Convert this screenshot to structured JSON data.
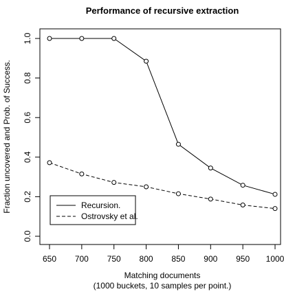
{
  "chart_data": {
    "type": "line",
    "title": "Performance of recursive extraction",
    "xlabel": "Matching documents",
    "xlabel_sub": "(1000 buckets, 10 samples per point.)",
    "ylabel": "Fraction uncovered and Prob. of Success.",
    "x": [
      650,
      700,
      750,
      800,
      850,
      900,
      950,
      1000
    ],
    "xlim": [
      650,
      1000
    ],
    "ylim": [
      0,
      1
    ],
    "x_ticks": [
      "650",
      "700",
      "750",
      "800",
      "850",
      "900",
      "950",
      "1000"
    ],
    "y_ticks": [
      "0.0",
      "0.2",
      "0.4",
      "0.6",
      "0.8",
      "1.0"
    ],
    "y_tick_values": [
      0,
      0.2,
      0.4,
      0.6,
      0.8,
      1.0
    ],
    "grid": false,
    "legend_position": "bottom-left",
    "series": [
      {
        "name": "Recursion.",
        "line_style": "solid",
        "values": [
          1.0,
          1.0,
          1.0,
          0.885,
          0.465,
          0.345,
          0.258,
          0.212
        ]
      },
      {
        "name": "Ostrovsky et al.",
        "line_style": "dashed",
        "values": [
          0.372,
          0.315,
          0.272,
          0.25,
          0.215,
          0.188,
          0.158,
          0.14
        ]
      }
    ]
  }
}
